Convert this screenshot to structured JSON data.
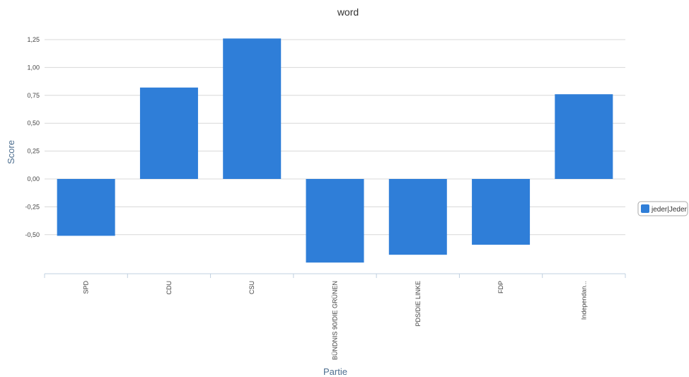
{
  "chart_data": {
    "type": "bar",
    "title": "word",
    "xlabel": "Partie",
    "ylabel": "Score",
    "categories": [
      "SPD",
      "CDU",
      "CSU",
      "BÜNDNIS 90/DIE GRÜNEN",
      "PDS/DIE LINKE",
      "FDP",
      "Independan..."
    ],
    "series": [
      {
        "name": "jeder|Jeder",
        "values": [
          -0.51,
          0.82,
          1.26,
          -0.75,
          -0.68,
          -0.59,
          0.76
        ]
      }
    ],
    "y_ticks": [
      "1,25",
      "1,00",
      "0,75",
      "0,50",
      "0,25",
      "0,00",
      "-0,25",
      "-0,50"
    ],
    "ylim": [
      -0.85,
      1.25
    ],
    "grid": true,
    "legend_position": "right",
    "colors": {
      "bar": "#2f7ed8",
      "grid": "#d8d8d8",
      "axis": "#c0d0e0",
      "axis_title": "#4d6e8f"
    }
  }
}
